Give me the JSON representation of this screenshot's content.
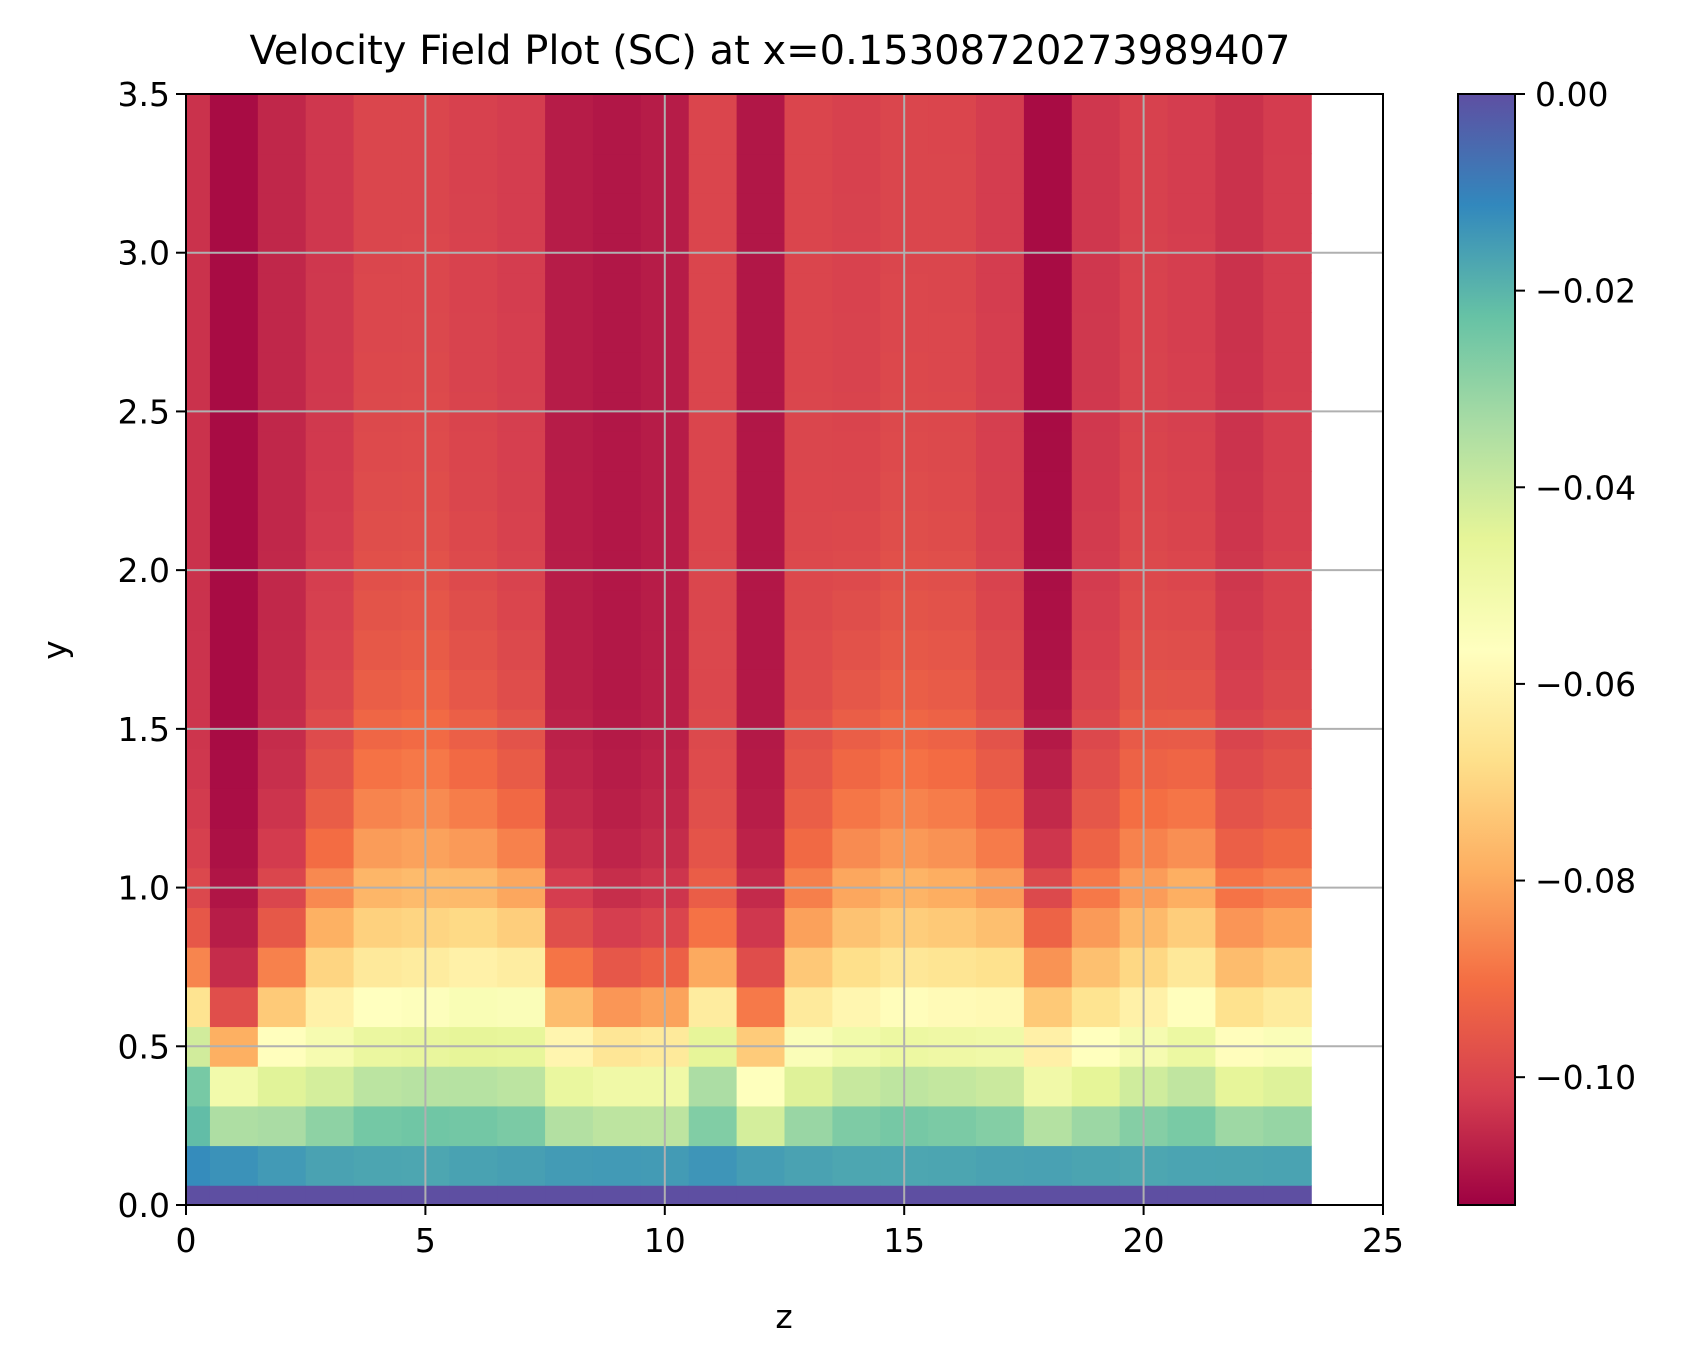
{
  "chart_data": {
    "type": "heatmap",
    "title": "Velocity Field Plot (SC) at x=0.15308720273989407",
    "xlabel": "z",
    "ylabel": "y",
    "xlim": [
      0,
      25
    ],
    "ylim": [
      0,
      3.5
    ],
    "xticks": [
      "0",
      "5",
      "10",
      "15",
      "20",
      "25"
    ],
    "yticks": [
      "0.0",
      "0.5",
      "1.0",
      "1.5",
      "2.0",
      "2.5",
      "3.0",
      "3.5"
    ],
    "grid": true,
    "colormap": "Spectral",
    "colorbar": {
      "min": -0.113,
      "max": 0.0,
      "ticks": [
        0.0,
        -0.02,
        -0.04,
        -0.06,
        -0.08,
        -0.1
      ],
      "tick_labels": [
        "0.00",
        "−0.02",
        "−0.04",
        "−0.06",
        "−0.08",
        "−0.10"
      ]
    },
    "x_edges": [
      0,
      0.5,
      1.5,
      2.5,
      3.5,
      4.5,
      5.5,
      6.5,
      7.5,
      8.5,
      9.5,
      10.5,
      11.5,
      12.5,
      13.5,
      14.5,
      15.5,
      16.5,
      17.5,
      18.5,
      19.5,
      20.5,
      21.5,
      22.5,
      23.5
    ],
    "y_edges": [
      0,
      0.0625,
      0.1875,
      0.3125,
      0.4375,
      0.5625,
      0.6875,
      0.8125,
      0.9375,
      1.0625,
      1.1875,
      1.3125,
      1.4375,
      1.5625,
      1.6875,
      1.8125,
      1.9375,
      2.0625,
      2.1875,
      2.3125,
      2.4375,
      2.5625,
      2.6875,
      2.8125,
      2.9375,
      3.0625,
      3.1875,
      3.3125,
      3.5
    ],
    "column_profiles": {
      "amplitude": [
        0.075,
        0.065,
        0.052,
        0.038,
        0.033,
        0.032,
        0.039,
        0.043,
        0.05,
        0.052,
        0.05,
        0.06,
        0.047,
        0.038,
        0.032,
        0.032,
        0.033,
        0.038,
        0.04,
        0.035,
        0.032,
        0.036,
        0.035,
        0.037,
        0.039
      ],
      "scale": [
        0.7,
        0.55,
        0.75,
        1.05,
        1.25,
        1.3,
        1.2,
        1.1,
        0.75,
        0.68,
        0.7,
        0.75,
        0.65,
        0.95,
        1.2,
        1.25,
        1.2,
        1.1,
        0.9,
        1.0,
        1.15,
        1.2,
        1.0,
        1.0,
        0.95
      ],
      "base": [
        -0.104,
        -0.111,
        -0.106,
        -0.103,
        -0.1,
        -0.1,
        -0.101,
        -0.102,
        -0.108,
        -0.109,
        -0.108,
        -0.1,
        -0.109,
        -0.1,
        -0.101,
        -0.1,
        -0.1,
        -0.102,
        -0.111,
        -0.103,
        -0.101,
        -0.102,
        -0.104,
        -0.102,
        -0.103
      ]
    }
  }
}
